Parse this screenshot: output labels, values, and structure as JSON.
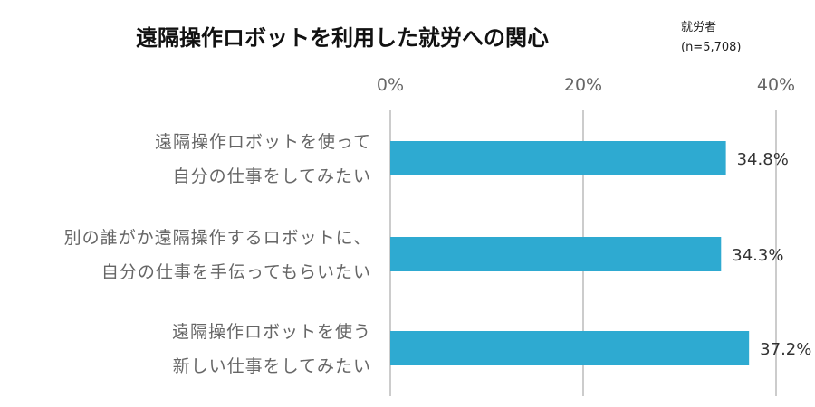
{
  "chart_data": {
    "type": "bar",
    "orientation": "horizontal",
    "title": "遠隔操作ロボットを利用した就労への関心",
    "note": [
      "就労者",
      "(n=5,708)"
    ],
    "categories": [
      [
        "遠隔操作ロボットを使って",
        "自分の仕事をしてみたい"
      ],
      [
        "別の誰がか遠隔操作するロボットに、",
        "自分の仕事を手伝ってもらいたい"
      ],
      [
        "遠隔操作ロボットを使う",
        "新しい仕事をしてみたい"
      ]
    ],
    "values": [
      34.8,
      34.3,
      37.2
    ],
    "value_labels": [
      "34.8%",
      "34.3%",
      "37.2%"
    ],
    "x_ticks": [
      0,
      20,
      40
    ],
    "x_tick_labels": [
      "0%",
      "20%",
      "40%"
    ],
    "xlim": [
      0,
      40
    ],
    "bar_color": "#2eaad1",
    "grid_color": "#cccccc",
    "grid": true,
    "x_axis_position": "top"
  }
}
